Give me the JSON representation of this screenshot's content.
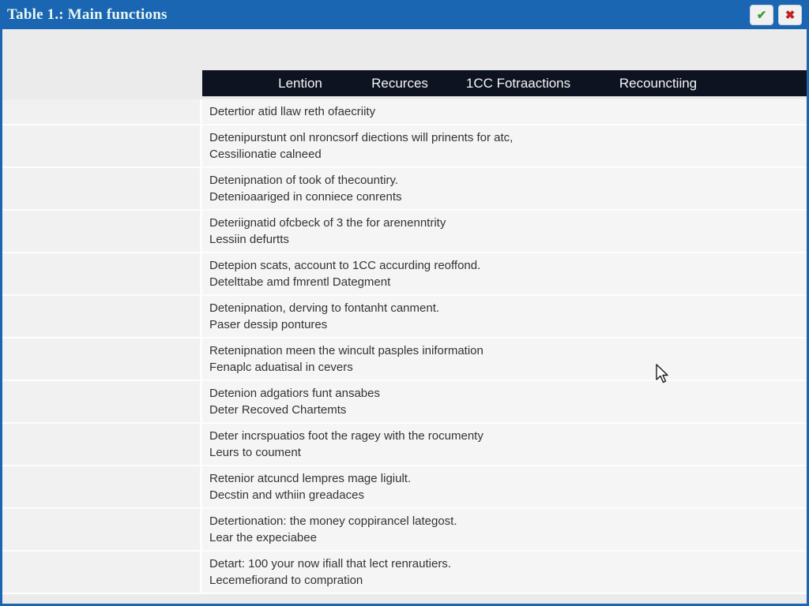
{
  "window": {
    "title": "Table 1.: Main functions",
    "confirm_icon": "✔",
    "close_icon": "✖"
  },
  "colors": {
    "titlebar": "#1b66b3",
    "titlebar_text": "#e9f7f1",
    "header_bg": "#0d1320",
    "header_text": "#f5f5f5",
    "page_bg": "#ebebeb",
    "left_cell_bg": "#f1f1f1",
    "row_bg": "#f5f5f5",
    "text": "#333333",
    "check_green": "#35a02f",
    "close_red": "#c32222"
  },
  "table": {
    "headers": [
      "Lention",
      "Recurces",
      "1CC Fotraactions",
      "Recounctiing"
    ],
    "rows": [
      {
        "lines": [
          "Detertior atid llaw reth ofaecriity"
        ]
      },
      {
        "lines": [
          "Detenipurstunt onl nroncsorf diections will prinents for atc,",
          "Cessilionatie calneed"
        ]
      },
      {
        "lines": [
          "Detenipnation of took of thecountiry.",
          "Detenioaariged in conniece conrents"
        ]
      },
      {
        "lines": [
          "Deteriignatid ofcbeck of 3 the for arenenntrity",
          "Lessiin defurtts"
        ]
      },
      {
        "lines": [
          "Detepion scats, account to 1CC accurding reoffond.",
          "Detelttabe amd fmrentl Dategment"
        ]
      },
      {
        "lines": [
          "Detenipnation, derving to fontanht canment.",
          "Paser dessip pontures"
        ]
      },
      {
        "lines": [
          "Retenipnation meen the wincult pasples iniformation",
          "Fenaplc aduatisal in cevers"
        ]
      },
      {
        "lines": [
          "Detenion adgatiors funt ansabes",
          "Deter Recoved Chartemts"
        ]
      },
      {
        "lines": [
          "Deter incrspuatios foot the ragey with the rocumenty",
          "Leurs to coument"
        ]
      },
      {
        "lines": [
          "Retenior atcuncd lempres mage ligiult.",
          "Decstin and wthiin greadaces"
        ]
      },
      {
        "lines": [
          "Detertionation: the money coppirancel lategost.",
          "Lear the expeciabee"
        ]
      },
      {
        "lines": [
          "Detart: 100 your now ifiall that lect renrautiers.",
          "Lecemefiorand to compration"
        ]
      }
    ]
  }
}
